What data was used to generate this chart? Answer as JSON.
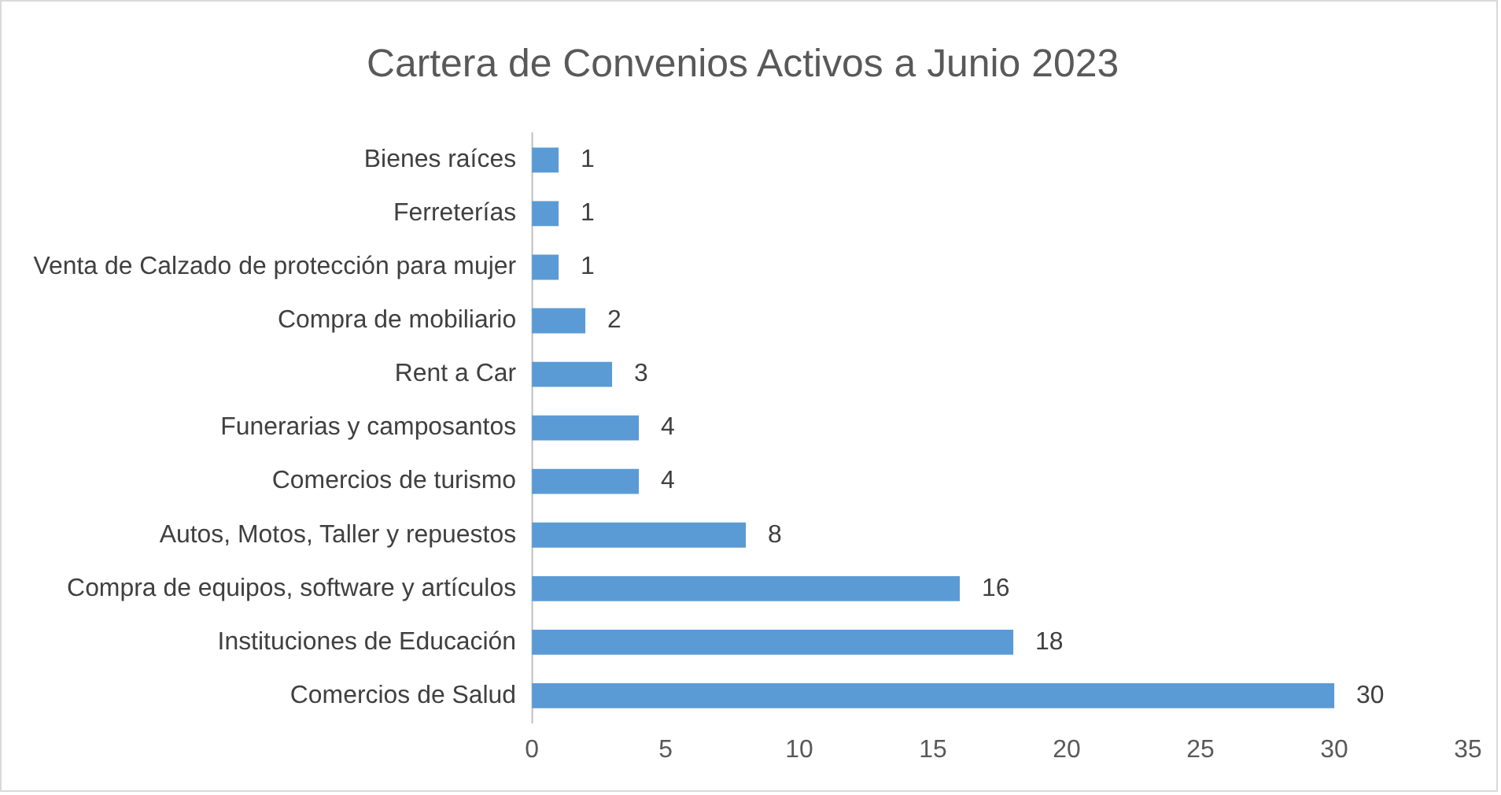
{
  "chart_data": {
    "type": "bar",
    "orientation": "horizontal",
    "title": "Cartera de Convenios Activos a Junio 2023",
    "categories": [
      "Bienes raíces",
      "Ferreterías",
      "Venta de Calzado de protección para mujer",
      "Compra de mobiliario",
      "Rent a Car",
      "Funerarias y camposantos",
      "Comercios de turismo",
      "Autos, Motos, Taller y repuestos",
      "Compra de equipos, software y artículos",
      "Instituciones de Educación",
      "Comercios de Salud"
    ],
    "values": [
      1,
      1,
      1,
      2,
      3,
      4,
      4,
      8,
      16,
      18,
      30
    ],
    "color": "#5b9bd5",
    "xlim": [
      0,
      35
    ],
    "xticks": [
      0,
      5,
      10,
      15,
      20,
      25,
      30,
      35
    ],
    "grid": false,
    "legend": false,
    "data_labels": true
  }
}
